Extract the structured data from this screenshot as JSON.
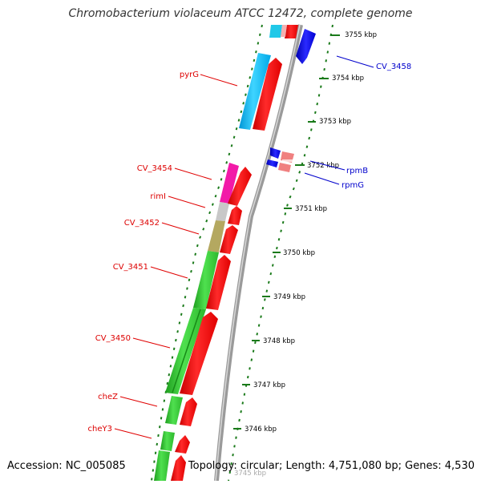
{
  "title": "Chromobacterium violaceum ATCC 12472, complete genome",
  "accession": "Accession: NC_005085",
  "topology": "Topology: circular; Length: 4,751,080 bp; Genes: 4,530",
  "scale": {
    "unit": "kbp",
    "ticks": [
      "3755 kbp",
      "3754 kbp",
      "3753 kbp",
      "3752 kbp",
      "3751 kbp",
      "3750 kbp",
      "3749 kbp",
      "3748 kbp",
      "3747 kbp",
      "3746 kbp"
    ],
    "partial_tick": "3745 kbp"
  },
  "genes_reverse": [
    {
      "name": "pyrG",
      "color": "#d40000"
    },
    {
      "name": "CV_3454",
      "color": "#d40000"
    },
    {
      "name": "rimI",
      "color": "#d40000"
    },
    {
      "name": "CV_3452",
      "color": "#d40000"
    },
    {
      "name": "CV_3451",
      "color": "#d40000"
    },
    {
      "name": "CV_3450",
      "color": "#d40000"
    },
    {
      "name": "cheZ",
      "color": "#d40000"
    },
    {
      "name": "cheY3",
      "color": "#d40000"
    }
  ],
  "genes_forward": [
    {
      "name": "CV_3458",
      "color": "#0000cc"
    },
    {
      "name": "rpmB",
      "color": "#0000cc"
    },
    {
      "name": "rpmG",
      "color": "#0000cc"
    }
  ],
  "colors": {
    "backbone": "#8c8c8c",
    "gene_red": "#ee0000",
    "gene_blue": "#0a0ae0",
    "tick_green": "#1a7a1a",
    "cds_cyan": "#00c0ff",
    "cds_magenta": "#f21aa8",
    "cds_grey": "#c8c8c8",
    "cds_olive": "#b4a860",
    "cds_green": "#33cc33",
    "cds_pink": "#f08080"
  }
}
